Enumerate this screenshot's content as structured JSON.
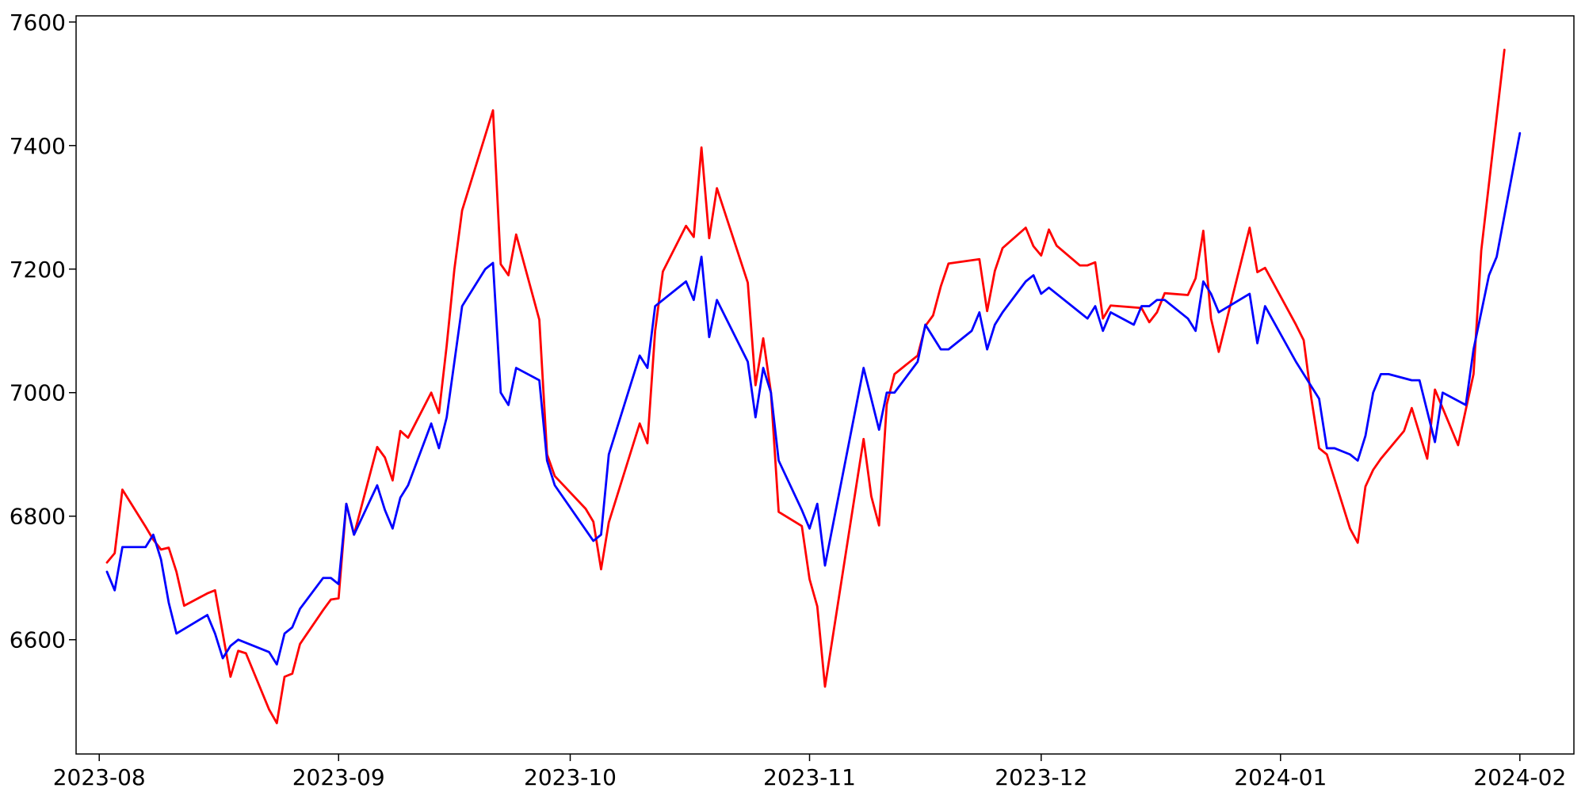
{
  "chart_data": {
    "type": "line",
    "title": "",
    "xlabel": "",
    "ylabel": "",
    "x_axis_type": "date",
    "xlim": [
      "2023-07-29",
      "2024-02-08"
    ],
    "ylim": [
      6415,
      7610
    ],
    "grid": false,
    "legend": "none",
    "x_ticks": [
      "2023-08-01",
      "2023-09-01",
      "2023-10-01",
      "2023-11-01",
      "2023-12-01",
      "2024-01-01",
      "2024-02-01"
    ],
    "x_tick_labels": [
      "2023-08",
      "2023-09",
      "2023-10",
      "2023-11",
      "2023-12",
      "2024-01",
      "2024-02"
    ],
    "y_ticks": [
      6600,
      6800,
      7000,
      7200,
      7400,
      7600
    ],
    "y_tick_labels": [
      "6600",
      "6800",
      "7000",
      "7200",
      "7400",
      "7600"
    ],
    "series": [
      {
        "color": "#ff0000",
        "points": [
          [
            "2023-08-02",
            6725
          ],
          [
            "2023-08-03",
            6740
          ],
          [
            "2023-08-04",
            6843
          ],
          [
            "2023-08-07",
            6783
          ],
          [
            "2023-08-08",
            6762
          ],
          [
            "2023-08-09",
            6746
          ],
          [
            "2023-08-10",
            6749
          ],
          [
            "2023-08-11",
            6710
          ],
          [
            "2023-08-12",
            6655
          ],
          [
            "2023-08-15",
            6675
          ],
          [
            "2023-08-16",
            6680
          ],
          [
            "2023-08-18",
            6540
          ],
          [
            "2023-08-19",
            6582
          ],
          [
            "2023-08-20",
            6578
          ],
          [
            "2023-08-23",
            6487
          ],
          [
            "2023-08-24",
            6465
          ],
          [
            "2023-08-25",
            6540
          ],
          [
            "2023-08-26",
            6545
          ],
          [
            "2023-08-27",
            6593
          ],
          [
            "2023-08-30",
            6648
          ],
          [
            "2023-08-31",
            6665
          ],
          [
            "2023-09-01",
            6667
          ],
          [
            "2023-09-02",
            6820
          ],
          [
            "2023-09-03",
            6770
          ],
          [
            "2023-09-06",
            6912
          ],
          [
            "2023-09-07",
            6895
          ],
          [
            "2023-09-08",
            6858
          ],
          [
            "2023-09-09",
            6938
          ],
          [
            "2023-09-10",
            6927
          ],
          [
            "2023-09-13",
            7000
          ],
          [
            "2023-09-14",
            6967
          ],
          [
            "2023-09-15",
            7076
          ],
          [
            "2023-09-16",
            7200
          ],
          [
            "2023-09-17",
            7295
          ],
          [
            "2023-09-21",
            7457
          ],
          [
            "2023-09-22",
            7208
          ],
          [
            "2023-09-23",
            7190
          ],
          [
            "2023-09-24",
            7256
          ],
          [
            "2023-09-27",
            7118
          ],
          [
            "2023-09-28",
            6900
          ],
          [
            "2023-09-29",
            6865
          ],
          [
            "2023-10-03",
            6812
          ],
          [
            "2023-10-04",
            6791
          ],
          [
            "2023-10-05",
            6714
          ],
          [
            "2023-10-06",
            6790
          ],
          [
            "2023-10-10",
            6950
          ],
          [
            "2023-10-11",
            6918
          ],
          [
            "2023-10-12",
            7100
          ],
          [
            "2023-10-13",
            7196
          ],
          [
            "2023-10-16",
            7270
          ],
          [
            "2023-10-17",
            7252
          ],
          [
            "2023-10-18",
            7397
          ],
          [
            "2023-10-19",
            7250
          ],
          [
            "2023-10-20",
            7331
          ],
          [
            "2023-10-24",
            7178
          ],
          [
            "2023-10-25",
            7012
          ],
          [
            "2023-10-26",
            7088
          ],
          [
            "2023-10-27",
            7000
          ],
          [
            "2023-10-28",
            6807
          ],
          [
            "2023-10-31",
            6784
          ],
          [
            "2023-11-01",
            6698
          ],
          [
            "2023-11-02",
            6654
          ],
          [
            "2023-11-03",
            6524
          ],
          [
            "2023-11-08",
            6925
          ],
          [
            "2023-11-09",
            6832
          ],
          [
            "2023-11-10",
            6785
          ],
          [
            "2023-11-11",
            6981
          ],
          [
            "2023-11-12",
            7030
          ],
          [
            "2023-11-15",
            7060
          ],
          [
            "2023-11-16",
            7108
          ],
          [
            "2023-11-17",
            7125
          ],
          [
            "2023-11-18",
            7172
          ],
          [
            "2023-11-19",
            7209
          ],
          [
            "2023-11-23",
            7216
          ],
          [
            "2023-11-24",
            7132
          ],
          [
            "2023-11-25",
            7197
          ],
          [
            "2023-11-26",
            7234
          ],
          [
            "2023-11-29",
            7267
          ],
          [
            "2023-11-30",
            7237
          ],
          [
            "2023-12-01",
            7222
          ],
          [
            "2023-12-02",
            7264
          ],
          [
            "2023-12-03",
            7238
          ],
          [
            "2023-12-06",
            7206
          ],
          [
            "2023-12-07",
            7206
          ],
          [
            "2023-12-08",
            7211
          ],
          [
            "2023-12-09",
            7120
          ],
          [
            "2023-12-10",
            7141
          ],
          [
            "2023-12-14",
            7137
          ],
          [
            "2023-12-15",
            7114
          ],
          [
            "2023-12-16",
            7130
          ],
          [
            "2023-12-17",
            7161
          ],
          [
            "2023-12-20",
            7158
          ],
          [
            "2023-12-21",
            7185
          ],
          [
            "2023-12-22",
            7262
          ],
          [
            "2023-12-23",
            7120
          ],
          [
            "2023-12-24",
            7066
          ],
          [
            "2023-12-28",
            7267
          ],
          [
            "2023-12-29",
            7195
          ],
          [
            "2023-12-30",
            7202
          ],
          [
            "2024-01-03",
            7110
          ],
          [
            "2024-01-04",
            7085
          ],
          [
            "2024-01-05",
            6990
          ],
          [
            "2024-01-06",
            6910
          ],
          [
            "2024-01-07",
            6900
          ],
          [
            "2024-01-10",
            6780
          ],
          [
            "2024-01-11",
            6757
          ],
          [
            "2024-01-12",
            6848
          ],
          [
            "2024-01-13",
            6875
          ],
          [
            "2024-01-14",
            6893
          ],
          [
            "2024-01-17",
            6938
          ],
          [
            "2024-01-18",
            6975
          ],
          [
            "2024-01-20",
            6893
          ],
          [
            "2024-01-21",
            7005
          ],
          [
            "2024-01-24",
            6915
          ],
          [
            "2024-01-26",
            7030
          ],
          [
            "2024-01-27",
            7230
          ],
          [
            "2024-01-30",
            7555
          ]
        ]
      },
      {
        "color": "#0000ff",
        "points": [
          [
            "2023-08-02",
            6710
          ],
          [
            "2023-08-03",
            6680
          ],
          [
            "2023-08-04",
            6750
          ],
          [
            "2023-08-07",
            6750
          ],
          [
            "2023-08-08",
            6770
          ],
          [
            "2023-08-09",
            6730
          ],
          [
            "2023-08-10",
            6660
          ],
          [
            "2023-08-11",
            6610
          ],
          [
            "2023-08-15",
            6640
          ],
          [
            "2023-08-16",
            6610
          ],
          [
            "2023-08-17",
            6570
          ],
          [
            "2023-08-18",
            6590
          ],
          [
            "2023-08-19",
            6600
          ],
          [
            "2023-08-23",
            6580
          ],
          [
            "2023-08-24",
            6560
          ],
          [
            "2023-08-25",
            6610
          ],
          [
            "2023-08-26",
            6620
          ],
          [
            "2023-08-27",
            6650
          ],
          [
            "2023-08-30",
            6700
          ],
          [
            "2023-08-31",
            6700
          ],
          [
            "2023-09-01",
            6690
          ],
          [
            "2023-09-02",
            6820
          ],
          [
            "2023-09-03",
            6770
          ],
          [
            "2023-09-06",
            6850
          ],
          [
            "2023-09-07",
            6810
          ],
          [
            "2023-09-08",
            6780
          ],
          [
            "2023-09-09",
            6830
          ],
          [
            "2023-09-10",
            6850
          ],
          [
            "2023-09-13",
            6950
          ],
          [
            "2023-09-14",
            6910
          ],
          [
            "2023-09-15",
            6960
          ],
          [
            "2023-09-17",
            7140
          ],
          [
            "2023-09-20",
            7200
          ],
          [
            "2023-09-21",
            7210
          ],
          [
            "2023-09-22",
            7000
          ],
          [
            "2023-09-23",
            6980
          ],
          [
            "2023-09-24",
            7040
          ],
          [
            "2023-09-27",
            7020
          ],
          [
            "2023-09-28",
            6890
          ],
          [
            "2023-09-29",
            6850
          ],
          [
            "2023-10-04",
            6760
          ],
          [
            "2023-10-05",
            6770
          ],
          [
            "2023-10-06",
            6900
          ],
          [
            "2023-10-10",
            7060
          ],
          [
            "2023-10-11",
            7040
          ],
          [
            "2023-10-12",
            7140
          ],
          [
            "2023-10-16",
            7180
          ],
          [
            "2023-10-17",
            7150
          ],
          [
            "2023-10-18",
            7220
          ],
          [
            "2023-10-19",
            7090
          ],
          [
            "2023-10-20",
            7150
          ],
          [
            "2023-10-24",
            7050
          ],
          [
            "2023-10-25",
            6960
          ],
          [
            "2023-10-26",
            7040
          ],
          [
            "2023-10-27",
            7000
          ],
          [
            "2023-10-28",
            6890
          ],
          [
            "2023-10-31",
            6810
          ],
          [
            "2023-11-01",
            6780
          ],
          [
            "2023-11-02",
            6820
          ],
          [
            "2023-11-03",
            6720
          ],
          [
            "2023-11-08",
            7040
          ],
          [
            "2023-11-10",
            6940
          ],
          [
            "2023-11-11",
            7000
          ],
          [
            "2023-11-12",
            7000
          ],
          [
            "2023-11-15",
            7050
          ],
          [
            "2023-11-16",
            7110
          ],
          [
            "2023-11-18",
            7070
          ],
          [
            "2023-11-19",
            7070
          ],
          [
            "2023-11-22",
            7100
          ],
          [
            "2023-11-23",
            7130
          ],
          [
            "2023-11-24",
            7070
          ],
          [
            "2023-11-25",
            7110
          ],
          [
            "2023-11-26",
            7130
          ],
          [
            "2023-11-29",
            7180
          ],
          [
            "2023-11-30",
            7190
          ],
          [
            "2023-12-01",
            7160
          ],
          [
            "2023-12-02",
            7170
          ],
          [
            "2023-12-06",
            7130
          ],
          [
            "2023-12-07",
            7120
          ],
          [
            "2023-12-08",
            7140
          ],
          [
            "2023-12-09",
            7100
          ],
          [
            "2023-12-10",
            7130
          ],
          [
            "2023-12-13",
            7110
          ],
          [
            "2023-12-14",
            7140
          ],
          [
            "2023-12-15",
            7140
          ],
          [
            "2023-12-16",
            7150
          ],
          [
            "2023-12-17",
            7150
          ],
          [
            "2023-12-20",
            7120
          ],
          [
            "2023-12-21",
            7100
          ],
          [
            "2023-12-22",
            7180
          ],
          [
            "2023-12-23",
            7160
          ],
          [
            "2023-12-24",
            7130
          ],
          [
            "2023-12-28",
            7160
          ],
          [
            "2023-12-29",
            7080
          ],
          [
            "2023-12-30",
            7140
          ],
          [
            "2024-01-03",
            7050
          ],
          [
            "2024-01-05",
            7010
          ],
          [
            "2024-01-06",
            6990
          ],
          [
            "2024-01-07",
            6910
          ],
          [
            "2024-01-08",
            6910
          ],
          [
            "2024-01-10",
            6900
          ],
          [
            "2024-01-11",
            6890
          ],
          [
            "2024-01-12",
            6930
          ],
          [
            "2024-01-13",
            7000
          ],
          [
            "2024-01-14",
            7030
          ],
          [
            "2024-01-15",
            7030
          ],
          [
            "2024-01-18",
            7020
          ],
          [
            "2024-01-19",
            7020
          ],
          [
            "2024-01-21",
            6920
          ],
          [
            "2024-01-22",
            7000
          ],
          [
            "2024-01-25",
            6980
          ],
          [
            "2024-01-26",
            7070
          ],
          [
            "2024-01-28",
            7190
          ],
          [
            "2024-01-29",
            7220
          ],
          [
            "2024-02-01",
            7420
          ]
        ]
      }
    ]
  }
}
